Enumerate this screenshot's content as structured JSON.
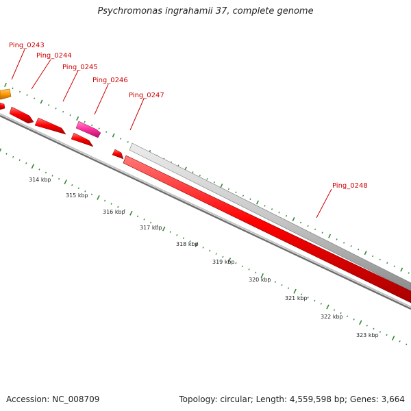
{
  "title": "Psychromonas ingrahamii 37, complete genome",
  "genes": [
    {
      "label": "Ping_0243"
    },
    {
      "label": "Ping_0244"
    },
    {
      "label": "Ping_0245"
    },
    {
      "label": "Ping_0246"
    },
    {
      "label": "Ping_0247"
    },
    {
      "label": "Ping_0248"
    }
  ],
  "ruler": [
    {
      "label": "314 kbp"
    },
    {
      "label": "315 kbp"
    },
    {
      "label": "316 kbp"
    },
    {
      "label": "317 kbp"
    },
    {
      "label": "318 kbp"
    },
    {
      "label": "319 kbp"
    },
    {
      "label": "320 kbp"
    },
    {
      "label": "321 kbp"
    },
    {
      "label": "322 kbp"
    },
    {
      "label": "323 kbp"
    }
  ],
  "colors": {
    "cds": "#ff0000",
    "highlight": "#ff2e9e",
    "orange": "#ff9900",
    "grey_feature": "#c8c8c8",
    "backbone": "#7a7a7a",
    "ticks": "#338833",
    "labels": "#cc0000"
  },
  "footer": {
    "accession": "Accession: NC_008709",
    "topology": "Topology: circular; Length: 4,559,598 bp; Genes: 3,664"
  }
}
